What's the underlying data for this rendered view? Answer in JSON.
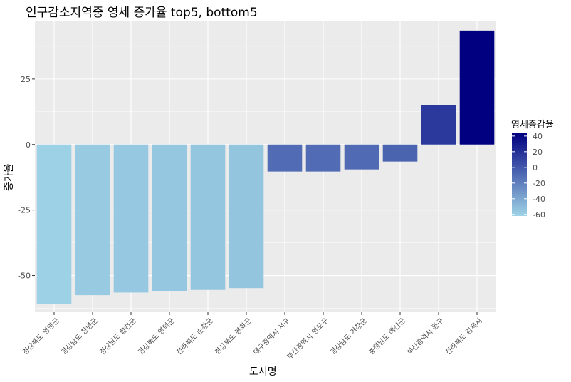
{
  "chart_data": {
    "type": "bar",
    "title": "인구감소지역중 영세 증가율 top5, bottom5",
    "xlabel": "도시명",
    "ylabel": "증가율",
    "legend_title": "영세증감율",
    "legend_ticks": [
      40,
      20,
      0,
      -20,
      -40,
      -60
    ],
    "legend_placement": "right",
    "color_low": "#9fd3e6",
    "color_high": "#000080",
    "ylim": [
      -64,
      47
    ],
    "yticks": [
      25,
      0,
      -25,
      -50
    ],
    "ytick_labels": [
      "25",
      "0",
      "-25",
      "-50"
    ],
    "grid": true,
    "categories": [
      "경상북도 영양군",
      "경상남도 창녕군",
      "경상남도 합천군",
      "경상북도 영덕군",
      "전라북도 순창군",
      "경상북도 봉화군",
      "대구광역시 서구",
      "부산광역시 영도구",
      "경상남도 거창군",
      "충청남도 예산군",
      "부산광역시 동구",
      "전라북도 김제시"
    ],
    "values": [
      -61.0,
      -57.5,
      -56.5,
      -56.0,
      -55.5,
      -54.8,
      -10.3,
      -10.3,
      -9.5,
      -6.5,
      15.0,
      43.5
    ]
  }
}
